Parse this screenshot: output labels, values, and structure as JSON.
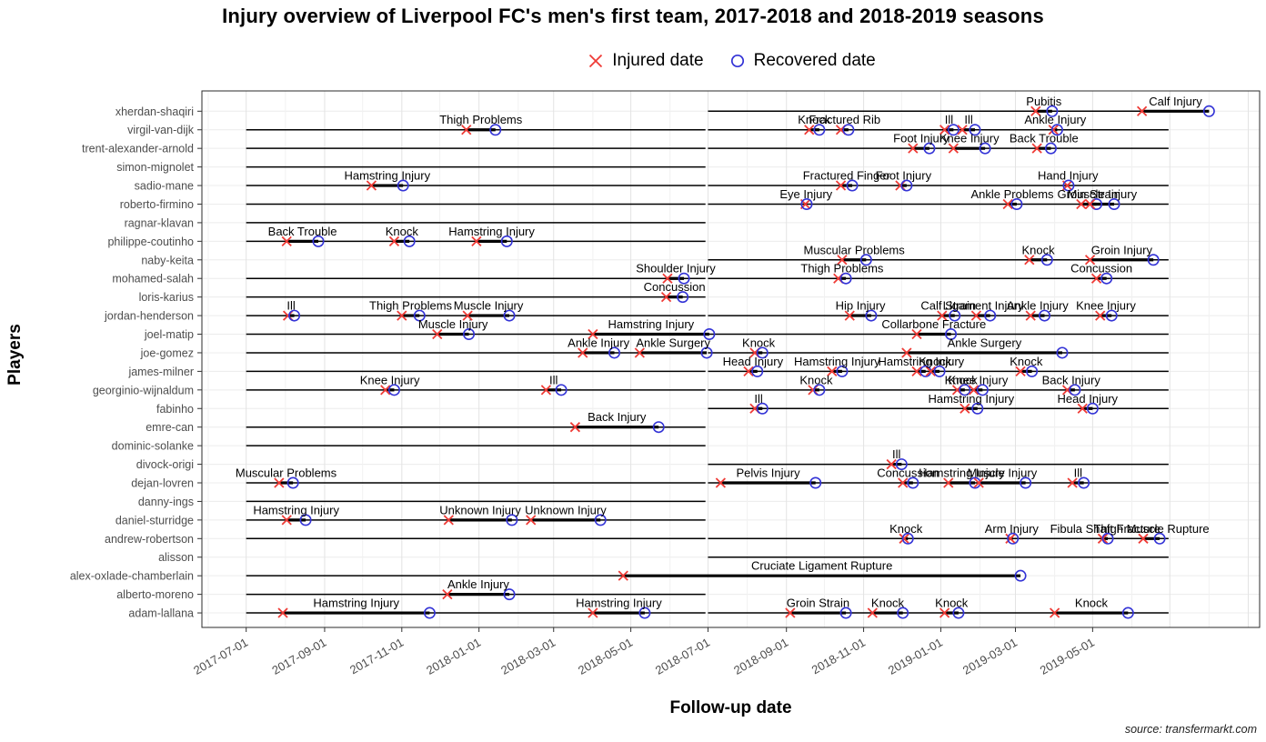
{
  "title": "Injury overview of Liverpool FC's men's first team, 2017-2018 and 2018-2019 seasons",
  "legend": {
    "injured_label": "Injured date",
    "recovered_label": "Recovered date"
  },
  "x_axis": {
    "label": "Follow-up date",
    "ticks": [
      "2017-07-01",
      "2017-09-01",
      "2017-11-01",
      "2018-01-01",
      "2018-03-01",
      "2018-05-01",
      "2018-07-01",
      "2018-09-01",
      "2018-11-01",
      "2019-01-01",
      "2019-03-01",
      "2019-05-01"
    ]
  },
  "y_axis": {
    "label": "Players"
  },
  "caption": "source: transfermarkt.com",
  "colors": {
    "injured": "#ef3b36",
    "recovered": "#3333d6",
    "line": "#000000",
    "grid_major": "#e3e3e3",
    "grid_minor": "#f1f1f1",
    "grid_row": "#ececec",
    "tick_text": "#4d4d4d",
    "panel_border": "#2b2b2b"
  },
  "chart_data": {
    "type": "scatter",
    "title": "Injury overview of Liverpool FC's men's first team, 2017-2018 and 2018-2019 seasons",
    "xlabel": "Follow-up date",
    "ylabel": "Players",
    "x_domain": [
      "2017-05-27",
      "2019-09-10"
    ],
    "grid": true,
    "legend_position": "top",
    "players": [
      {
        "name": "xherdan-shaqiri",
        "follow_up": [
          [
            "2018-07-01",
            "2019-08-01"
          ]
        ],
        "injuries": [
          {
            "label": "Pubitis",
            "injured": "2019-03-17",
            "recovered": "2019-03-30"
          },
          {
            "label": "Calf Injury",
            "injured": "2019-06-09",
            "recovered": "2019-08-01"
          }
        ]
      },
      {
        "name": "virgil-van-dijk",
        "follow_up": [
          [
            "2017-07-01",
            "2018-06-29"
          ],
          [
            "2018-07-01",
            "2019-06-30"
          ]
        ],
        "injuries": [
          {
            "label": "Thigh Problems",
            "injured": "2017-12-22",
            "recovered": "2018-01-14"
          },
          {
            "label": "Knock",
            "injured": "2018-09-19",
            "recovered": "2018-09-27"
          },
          {
            "label": "Fractured Rib",
            "injured": "2018-10-14",
            "recovered": "2018-10-20"
          },
          {
            "label": "Ill",
            "injured": "2019-01-04",
            "recovered": "2019-01-11"
          },
          {
            "label": "Ill",
            "injured": "2019-01-18",
            "recovered": "2019-01-28"
          },
          {
            "label": "Ankle Injury",
            "injured": "2019-03-31",
            "recovered": "2019-04-03"
          }
        ]
      },
      {
        "name": "trent-alexander-arnold",
        "follow_up": [
          [
            "2017-07-01",
            "2018-06-29"
          ],
          [
            "2018-07-01",
            "2019-06-30"
          ]
        ],
        "injuries": [
          {
            "label": "Foot Injury",
            "injured": "2018-12-10",
            "recovered": "2018-12-23"
          },
          {
            "label": "Knee Injury",
            "injured": "2019-01-11",
            "recovered": "2019-02-05"
          },
          {
            "label": "Back Trouble",
            "injured": "2019-03-18",
            "recovered": "2019-03-29"
          }
        ]
      },
      {
        "name": "simon-mignolet",
        "follow_up": [
          [
            "2017-07-01",
            "2018-06-29"
          ]
        ],
        "injuries": []
      },
      {
        "name": "sadio-mane",
        "follow_up": [
          [
            "2017-07-01",
            "2018-06-29"
          ],
          [
            "2018-07-01",
            "2019-06-30"
          ]
        ],
        "injuries": [
          {
            "label": "Hamstring Injury",
            "injured": "2017-10-08",
            "recovered": "2017-11-02"
          },
          {
            "label": "Fractured Finger",
            "injured": "2018-10-14",
            "recovered": "2018-10-23"
          },
          {
            "label": "Foot Injury",
            "injured": "2018-11-30",
            "recovered": "2018-12-05"
          },
          {
            "label": "Hand Injury",
            "injured": "2019-04-11",
            "recovered": "2019-04-12"
          }
        ]
      },
      {
        "name": "roberto-firmino",
        "follow_up": [
          [
            "2017-07-01",
            "2018-06-29"
          ],
          [
            "2018-07-01",
            "2019-06-30"
          ]
        ],
        "injuries": [
          {
            "label": "Eye Injury",
            "injured": "2018-09-16",
            "recovered": "2018-09-17"
          },
          {
            "label": "Ankle Problems",
            "injured": "2019-02-23",
            "recovered": "2019-03-02"
          },
          {
            "label": "Groin Strain",
            "injured": "2019-04-22",
            "recovered": "2019-05-04"
          },
          {
            "label": "Muscle Injury",
            "injured": "2019-04-29",
            "recovered": "2019-05-18"
          }
        ]
      },
      {
        "name": "ragnar-klavan",
        "follow_up": [
          [
            "2017-07-01",
            "2018-06-29"
          ]
        ],
        "injuries": []
      },
      {
        "name": "philippe-coutinho",
        "follow_up": [
          [
            "2017-07-01",
            "2018-06-29"
          ]
        ],
        "injuries": [
          {
            "label": "Back Trouble",
            "injured": "2017-08-02",
            "recovered": "2017-08-27"
          },
          {
            "label": "Knock",
            "injured": "2017-10-26",
            "recovered": "2017-11-07"
          },
          {
            "label": "Hamstring Injury",
            "injured": "2017-12-30",
            "recovered": "2018-01-23"
          }
        ]
      },
      {
        "name": "naby-keita",
        "follow_up": [
          [
            "2018-07-01",
            "2019-06-30"
          ]
        ],
        "injuries": [
          {
            "label": "Muscular Problems",
            "injured": "2018-10-15",
            "recovered": "2018-11-03"
          },
          {
            "label": "Knock",
            "injured": "2019-03-12",
            "recovered": "2019-03-26"
          },
          {
            "label": "Groin Injury",
            "injured": "2019-04-29",
            "recovered": "2019-06-18"
          }
        ]
      },
      {
        "name": "mohamed-salah",
        "follow_up": [
          [
            "2017-07-01",
            "2018-06-29"
          ],
          [
            "2018-07-01",
            "2019-06-30"
          ]
        ],
        "injuries": [
          {
            "label": "Shoulder Injury",
            "injured": "2018-05-30",
            "recovered": "2018-06-12"
          },
          {
            "label": "Thigh Problems",
            "injured": "2018-10-12",
            "recovered": "2018-10-18"
          },
          {
            "label": "Concussion",
            "injured": "2019-05-04",
            "recovered": "2019-05-12"
          }
        ]
      },
      {
        "name": "loris-karius",
        "follow_up": [
          [
            "2017-07-01",
            "2018-06-29"
          ]
        ],
        "injuries": [
          {
            "label": "Concussion",
            "injured": "2018-05-29",
            "recovered": "2018-06-11"
          }
        ]
      },
      {
        "name": "jordan-henderson",
        "follow_up": [
          [
            "2017-07-01",
            "2018-06-29"
          ],
          [
            "2018-07-01",
            "2019-06-30"
          ]
        ],
        "injuries": [
          {
            "label": "Ill",
            "injured": "2017-08-03",
            "recovered": "2017-08-08"
          },
          {
            "label": "Thigh Problems",
            "injured": "2017-11-01",
            "recovered": "2017-11-15"
          },
          {
            "label": "Muscle Injury",
            "injured": "2017-12-23",
            "recovered": "2018-01-25"
          },
          {
            "label": "Hip Injury",
            "injured": "2018-10-21",
            "recovered": "2018-11-07"
          },
          {
            "label": "Calf Strain",
            "injured": "2019-01-02",
            "recovered": "2019-01-12"
          },
          {
            "label": "Ligament Injury",
            "injured": "2019-01-29",
            "recovered": "2019-02-09"
          },
          {
            "label": "Ankle Injury",
            "injured": "2019-03-13",
            "recovered": "2019-03-24"
          },
          {
            "label": "Knee Injury",
            "injured": "2019-05-07",
            "recovered": "2019-05-16"
          }
        ]
      },
      {
        "name": "joel-matip",
        "follow_up": [
          [
            "2017-07-01",
            "2018-06-29"
          ],
          [
            "2018-07-01",
            "2019-06-30"
          ]
        ],
        "injuries": [
          {
            "label": "Muscle Injury",
            "injured": "2017-11-29",
            "recovered": "2017-12-24"
          },
          {
            "label": "Hamstring Injury",
            "injured": "2018-04-01",
            "recovered": "2018-07-02"
          },
          {
            "label": "Collarbone Fracture",
            "injured": "2018-12-13",
            "recovered": "2019-01-09"
          }
        ]
      },
      {
        "name": "joe-gomez",
        "follow_up": [
          [
            "2017-07-01",
            "2018-06-29"
          ],
          [
            "2018-07-01",
            "2019-06-30"
          ]
        ],
        "injuries": [
          {
            "label": "Ankle Injury",
            "injured": "2018-03-24",
            "recovered": "2018-04-18"
          },
          {
            "label": "Ankle Surgery",
            "injured": "2018-05-08",
            "recovered": "2018-06-30"
          },
          {
            "label": "Knock",
            "injured": "2018-08-07",
            "recovered": "2018-08-13"
          },
          {
            "label": "Ankle Surgery",
            "injured": "2018-12-05",
            "recovered": "2019-04-07"
          }
        ]
      },
      {
        "name": "james-milner",
        "follow_up": [
          [
            "2017-07-01",
            "2018-06-29"
          ],
          [
            "2018-07-01",
            "2019-06-30"
          ]
        ],
        "injuries": [
          {
            "label": "Head Injury",
            "injured": "2018-08-02",
            "recovered": "2018-08-09"
          },
          {
            "label": "Hamstring Injury",
            "injured": "2018-10-07",
            "recovered": "2018-10-15"
          },
          {
            "label": "Hamstring Injury",
            "injured": "2018-12-13",
            "recovered": "2018-12-20"
          },
          {
            "label": "Knock",
            "injured": "2018-12-24",
            "recovered": "2018-12-31"
          },
          {
            "label": "Knock",
            "injured": "2019-03-05",
            "recovered": "2019-03-14"
          }
        ]
      },
      {
        "name": "georginio-wijnaldum",
        "follow_up": [
          [
            "2017-07-01",
            "2018-06-29"
          ],
          [
            "2018-07-01",
            "2019-06-30"
          ]
        ],
        "injuries": [
          {
            "label": "Knee Injury",
            "injured": "2017-10-19",
            "recovered": "2017-10-26"
          },
          {
            "label": "Ill",
            "injured": "2018-02-23",
            "recovered": "2018-03-07"
          },
          {
            "label": "Knock",
            "injured": "2018-09-22",
            "recovered": "2018-09-27"
          },
          {
            "label": "Knock",
            "injured": "2019-01-14",
            "recovered": "2019-01-20"
          },
          {
            "label": "Knee Injury",
            "injured": "2019-01-27",
            "recovered": "2019-02-03"
          },
          {
            "label": "Back Injury",
            "injured": "2019-04-11",
            "recovered": "2019-04-17"
          }
        ]
      },
      {
        "name": "fabinho",
        "follow_up": [
          [
            "2018-07-01",
            "2019-06-30"
          ]
        ],
        "injuries": [
          {
            "label": "Ill",
            "injured": "2018-08-07",
            "recovered": "2018-08-13"
          },
          {
            "label": "Hamstring Injury",
            "injured": "2019-01-20",
            "recovered": "2019-01-30"
          },
          {
            "label": "Head Injury",
            "injured": "2019-04-23",
            "recovered": "2019-05-01"
          }
        ]
      },
      {
        "name": "emre-can",
        "follow_up": [
          [
            "2017-07-01",
            "2018-06-29"
          ]
        ],
        "injuries": [
          {
            "label": "Back Injury",
            "injured": "2018-03-18",
            "recovered": "2018-05-23"
          }
        ]
      },
      {
        "name": "dominic-solanke",
        "follow_up": [
          [
            "2017-07-01",
            "2018-06-29"
          ]
        ],
        "injuries": []
      },
      {
        "name": "divock-origi",
        "follow_up": [
          [
            "2018-07-01",
            "2019-06-30"
          ]
        ],
        "injuries": [
          {
            "label": "Ill",
            "injured": "2018-11-23",
            "recovered": "2018-12-01"
          }
        ]
      },
      {
        "name": "dejan-lovren",
        "follow_up": [
          [
            "2017-07-01",
            "2018-06-29"
          ],
          [
            "2018-07-01",
            "2019-06-30"
          ]
        ],
        "injuries": [
          {
            "label": "Muscular Problems",
            "injured": "2017-07-27",
            "recovered": "2017-08-07"
          },
          {
            "label": "Pelvis Injury",
            "injured": "2018-07-11",
            "recovered": "2018-09-24"
          },
          {
            "label": "Concussion",
            "injured": "2018-12-02",
            "recovered": "2018-12-10"
          },
          {
            "label": "Hamstring Injury",
            "injured": "2019-01-07",
            "recovered": "2019-01-28"
          },
          {
            "label": "Muscle Injury",
            "injured": "2019-01-31",
            "recovered": "2019-03-09"
          },
          {
            "label": "Ill",
            "injured": "2019-04-15",
            "recovered": "2019-04-24"
          }
        ]
      },
      {
        "name": "danny-ings",
        "follow_up": [
          [
            "2017-07-01",
            "2018-06-29"
          ]
        ],
        "injuries": []
      },
      {
        "name": "daniel-sturridge",
        "follow_up": [
          [
            "2017-07-01",
            "2018-06-29"
          ]
        ],
        "injuries": [
          {
            "label": "Hamstring Injury",
            "injured": "2017-08-02",
            "recovered": "2017-08-17"
          },
          {
            "label": "Unknown Injury",
            "injured": "2017-12-08",
            "recovered": "2018-01-27"
          },
          {
            "label": "Unknown Injury",
            "injured": "2018-02-11",
            "recovered": "2018-04-07"
          }
        ]
      },
      {
        "name": "andrew-robertson",
        "follow_up": [
          [
            "2017-07-01",
            "2018-06-29"
          ],
          [
            "2018-07-01",
            "2019-06-30"
          ]
        ],
        "injuries": [
          {
            "label": "Knock",
            "injured": "2018-12-03",
            "recovered": "2018-12-06"
          },
          {
            "label": "Arm Injury",
            "injured": "2019-02-25",
            "recovered": "2019-02-27"
          },
          {
            "label": "Fibula Shaft Fracture",
            "injured": "2019-05-09",
            "recovered": "2019-05-13"
          },
          {
            "label": "Thigh Muscle Rupture",
            "injured": "2019-06-10",
            "recovered": "2019-06-23"
          }
        ]
      },
      {
        "name": "alisson",
        "follow_up": [
          [
            "2018-07-01",
            "2019-06-30"
          ]
        ],
        "injuries": []
      },
      {
        "name": "alex-oxlade-chamberlain",
        "follow_up": [
          [
            "2017-07-01",
            "2018-06-29"
          ]
        ],
        "injuries": [
          {
            "label": "Cruciate Ligament Rupture",
            "injured": "2018-04-25",
            "recovered": "2019-03-05"
          }
        ]
      },
      {
        "name": "alberto-moreno",
        "follow_up": [
          [
            "2017-07-01",
            "2018-06-29"
          ]
        ],
        "injuries": [
          {
            "label": "Ankle Injury",
            "injured": "2017-12-07",
            "recovered": "2018-01-25"
          }
        ]
      },
      {
        "name": "adam-lallana",
        "follow_up": [
          [
            "2017-07-01",
            "2018-06-29"
          ],
          [
            "2018-07-01",
            "2019-06-30"
          ]
        ],
        "injuries": [
          {
            "label": "Hamstring Injury",
            "injured": "2017-07-30",
            "recovered": "2017-11-23"
          },
          {
            "label": "Hamstring Injury",
            "injured": "2018-04-01",
            "recovered": "2018-05-12"
          },
          {
            "label": "Groin Strain",
            "injured": "2018-09-04",
            "recovered": "2018-10-18"
          },
          {
            "label": "Knock",
            "injured": "2018-11-08",
            "recovered": "2018-12-02"
          },
          {
            "label": "Knock",
            "injured": "2019-01-04",
            "recovered": "2019-01-15"
          },
          {
            "label": "Knock",
            "injured": "2019-04-01",
            "recovered": "2019-05-29"
          }
        ]
      }
    ]
  }
}
